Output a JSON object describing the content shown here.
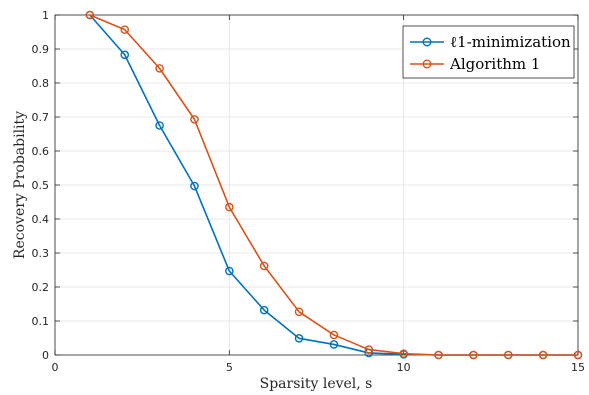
{
  "chart_data": {
    "type": "line",
    "xlabel": "Sparsity level, s",
    "ylabel": "Recovery Probability",
    "xlim": [
      0,
      15
    ],
    "ylim": [
      0,
      1
    ],
    "xticks": [
      0,
      5,
      10,
      15
    ],
    "yticks": [
      0,
      0.1,
      0.2,
      0.3,
      0.4,
      0.5,
      0.6,
      0.7,
      0.8,
      0.9,
      1
    ],
    "grid": true,
    "legend_position": "top-right",
    "x": [
      1,
      2,
      3,
      4,
      5,
      6,
      7,
      8,
      9,
      10,
      11,
      12,
      13,
      14,
      15
    ],
    "series": [
      {
        "name": "ℓ1-minimization",
        "color": "#0072BD",
        "values": [
          1.0,
          0.883,
          0.675,
          0.497,
          0.247,
          0.132,
          0.049,
          0.031,
          0.006,
          0.002,
          0,
          0,
          0,
          0,
          0
        ]
      },
      {
        "name": "Algorithm 1",
        "color": "#D95319",
        "values": [
          1.0,
          0.957,
          0.843,
          0.693,
          0.435,
          0.262,
          0.127,
          0.059,
          0.016,
          0.004,
          0,
          0,
          0,
          0,
          0
        ]
      }
    ]
  }
}
